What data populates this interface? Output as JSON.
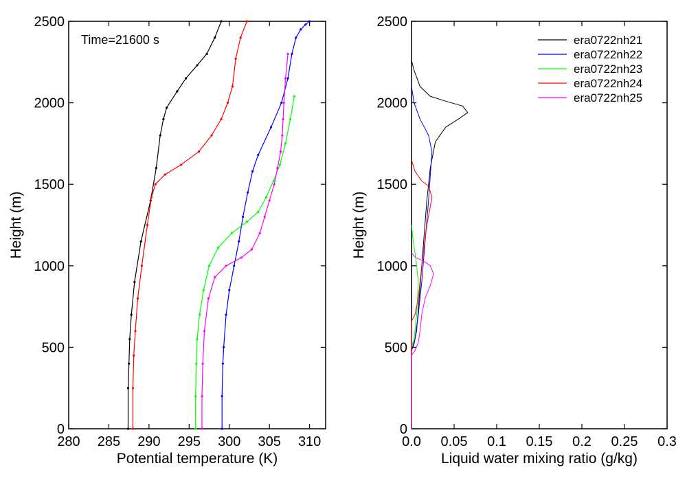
{
  "chart_data": [
    {
      "type": "line",
      "title": "",
      "xlabel": "Potential temperature (K)",
      "ylabel": "Height (m)",
      "xlim": [
        280,
        312
      ],
      "ylim": [
        0,
        2500
      ],
      "xticks": [
        280,
        285,
        290,
        295,
        300,
        305,
        310
      ],
      "xtick_labels": [
        "280",
        "285",
        "290",
        "295",
        "300",
        "305",
        "310"
      ],
      "yticks": [
        0,
        500,
        1000,
        1500,
        2000,
        2500
      ],
      "ytick_labels": [
        "0",
        "500",
        "1000",
        "1500",
        "2000",
        "2500"
      ],
      "grid": false,
      "markers": true,
      "annotation": "Time=21600 s",
      "series": [
        {
          "name": "era0722nh21",
          "color": "#000000",
          "x": [
            287.4,
            287.4,
            287.5,
            287.6,
            287.8,
            288.2,
            289.0,
            290.2,
            290.9,
            291.4,
            291.8,
            292.2,
            293.5,
            294.6,
            296.0,
            297.2,
            298.2,
            299.0
          ],
          "y": [
            0,
            250,
            400,
            550,
            700,
            900,
            1150,
            1400,
            1600,
            1800,
            1900,
            1970,
            2070,
            2150,
            2230,
            2300,
            2400,
            2500
          ]
        },
        {
          "name": "era0722nh22",
          "color": "#0000ff",
          "x": [
            299.1,
            299.1,
            299.2,
            299.3,
            299.6,
            300.0,
            300.6,
            301.2,
            301.7,
            302.3,
            302.9,
            303.6,
            305.2,
            306.5,
            307.3,
            307.8,
            308.3,
            308.9,
            309.5,
            310.0
          ],
          "y": [
            0,
            200,
            400,
            500,
            700,
            850,
            1000,
            1150,
            1300,
            1450,
            1580,
            1680,
            1850,
            2000,
            2150,
            2300,
            2400,
            2450,
            2480,
            2500
          ]
        },
        {
          "name": "era0722nh23",
          "color": "#00ff00",
          "x": [
            295.8,
            295.8,
            295.9,
            296.0,
            296.3,
            296.8,
            297.5,
            298.6,
            300.3,
            302.2,
            303.6,
            304.6,
            305.5,
            306.3,
            307.0,
            307.6,
            308.1
          ],
          "y": [
            0,
            200,
            400,
            550,
            700,
            850,
            1000,
            1110,
            1200,
            1270,
            1330,
            1420,
            1520,
            1620,
            1750,
            1900,
            2040
          ]
        },
        {
          "name": "era0722nh24",
          "color": "#ff0000",
          "x": [
            288.0,
            288.0,
            288.1,
            288.3,
            288.6,
            289.1,
            289.8,
            290.3,
            290.8,
            292.0,
            294.0,
            296.2,
            297.8,
            299.0,
            299.8,
            300.4,
            300.8,
            301.4,
            302.2
          ],
          "y": [
            0,
            250,
            450,
            600,
            800,
            1000,
            1250,
            1420,
            1500,
            1560,
            1620,
            1700,
            1800,
            1900,
            2000,
            2100,
            2270,
            2400,
            2500
          ]
        },
        {
          "name": "era0722nh25",
          "color": "#ff00ff",
          "x": [
            296.6,
            296.6,
            296.7,
            296.9,
            297.4,
            298.2,
            299.6,
            301.5,
            302.8,
            303.8,
            304.4,
            305.0,
            305.6,
            306.0,
            306.4,
            306.6,
            306.7,
            306.8,
            307.0,
            307.3
          ],
          "y": [
            0,
            200,
            400,
            600,
            800,
            930,
            1000,
            1050,
            1100,
            1200,
            1300,
            1400,
            1500,
            1600,
            1700,
            1800,
            1900,
            2000,
            2150,
            2300
          ]
        }
      ]
    },
    {
      "type": "line",
      "title": "",
      "xlabel": "Liquid water mixing ratio (g/kg)",
      "ylabel": "Height (m)",
      "xlim": [
        0,
        0.3
      ],
      "ylim": [
        0,
        2500
      ],
      "xticks": [
        0,
        0.05,
        0.1,
        0.15,
        0.2,
        0.25,
        0.3
      ],
      "xtick_labels": [
        "0.0",
        "0.05",
        "0.1",
        "0.15",
        "0.2",
        "0.25",
        "0.3"
      ],
      "yticks": [
        0,
        500,
        1000,
        1500,
        2000,
        2500
      ],
      "ytick_labels": [
        "0",
        "500",
        "1000",
        "1500",
        "2000",
        "2500"
      ],
      "grid": false,
      "markers": false,
      "legend_position": "top-right",
      "series": [
        {
          "name": "era0722nh21",
          "color": "#000000",
          "x": [
            0,
            0,
            0.003,
            0.006,
            0.009,
            0.012,
            0.015,
            0.018,
            0.022,
            0.028,
            0.04,
            0.055,
            0.066,
            0.06,
            0.04,
            0.022,
            0.01,
            0.003,
            0
          ],
          "y": [
            0,
            480,
            520,
            600,
            800,
            1000,
            1200,
            1400,
            1600,
            1760,
            1850,
            1900,
            1940,
            1980,
            2010,
            2040,
            2100,
            2200,
            2260
          ]
        },
        {
          "name": "era0722nh22",
          "color": "#0000ff",
          "x": [
            0,
            0,
            0.004,
            0.008,
            0.012,
            0.016,
            0.02,
            0.024,
            0.02,
            0.01,
            0.003,
            0
          ],
          "y": [
            0,
            480,
            550,
            700,
            900,
            1150,
            1400,
            1700,
            1800,
            1900,
            2000,
            2100
          ]
        },
        {
          "name": "era0722nh23",
          "color": "#00ff00",
          "x": [
            0,
            0,
            0.003,
            0.006,
            0.008,
            0.005,
            0.002,
            0
          ],
          "y": [
            0,
            500,
            550,
            700,
            900,
            1050,
            1150,
            1250
          ]
        },
        {
          "name": "era0722nh24",
          "color": "#ff0000",
          "x": [
            0,
            0,
            0.004,
            0.008,
            0.012,
            0.018,
            0.024,
            0.02,
            0.012,
            0.004,
            0
          ],
          "y": [
            0,
            660,
            700,
            800,
            1000,
            1250,
            1420,
            1490,
            1520,
            1580,
            1650
          ]
        },
        {
          "name": "era0722nh25",
          "color": "#ff00ff",
          "x": [
            0,
            0,
            0.004,
            0.008,
            0.01,
            0.012,
            0.016,
            0.022,
            0.026,
            0.022,
            0.014,
            0.005,
            0
          ],
          "y": [
            0,
            450,
            480,
            530,
            600,
            700,
            800,
            880,
            950,
            1000,
            1030,
            1050,
            1080
          ]
        }
      ]
    }
  ]
}
